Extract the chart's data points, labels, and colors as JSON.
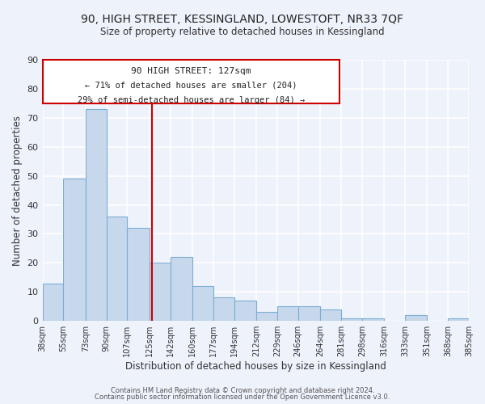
{
  "title": "90, HIGH STREET, KESSINGLAND, LOWESTOFT, NR33 7QF",
  "subtitle": "Size of property relative to detached houses in Kessingland",
  "xlabel": "Distribution of detached houses by size in Kessingland",
  "ylabel": "Number of detached properties",
  "bar_color": "#c8d8ec",
  "bar_edge_color": "#7aaed4",
  "background_color": "#eef2fb",
  "grid_color": "#ffffff",
  "bins": [
    38,
    55,
    73,
    90,
    107,
    125,
    142,
    160,
    177,
    194,
    212,
    229,
    246,
    264,
    281,
    298,
    316,
    333,
    351,
    368,
    385
  ],
  "bin_labels": [
    "38sqm",
    "55sqm",
    "73sqm",
    "90sqm",
    "107sqm",
    "125sqm",
    "142sqm",
    "160sqm",
    "177sqm",
    "194sqm",
    "212sqm",
    "229sqm",
    "246sqm",
    "264sqm",
    "281sqm",
    "298sqm",
    "316sqm",
    "333sqm",
    "351sqm",
    "368sqm",
    "385sqm"
  ],
  "values": [
    13,
    49,
    73,
    36,
    32,
    20,
    22,
    12,
    8,
    7,
    3,
    5,
    5,
    4,
    1,
    1,
    0,
    2,
    0,
    1,
    0
  ],
  "vline_x": 127,
  "vline_color": "#cc0000",
  "ylim": [
    0,
    90
  ],
  "yticks": [
    0,
    10,
    20,
    30,
    40,
    50,
    60,
    70,
    80,
    90
  ],
  "annotation_title": "90 HIGH STREET: 127sqm",
  "annotation_line1": "← 71% of detached houses are smaller (204)",
  "annotation_line2": "29% of semi-detached houses are larger (84) →",
  "footer_line1": "Contains HM Land Registry data © Crown copyright and database right 2024.",
  "footer_line2": "Contains public sector information licensed under the Open Government Licence v3.0."
}
